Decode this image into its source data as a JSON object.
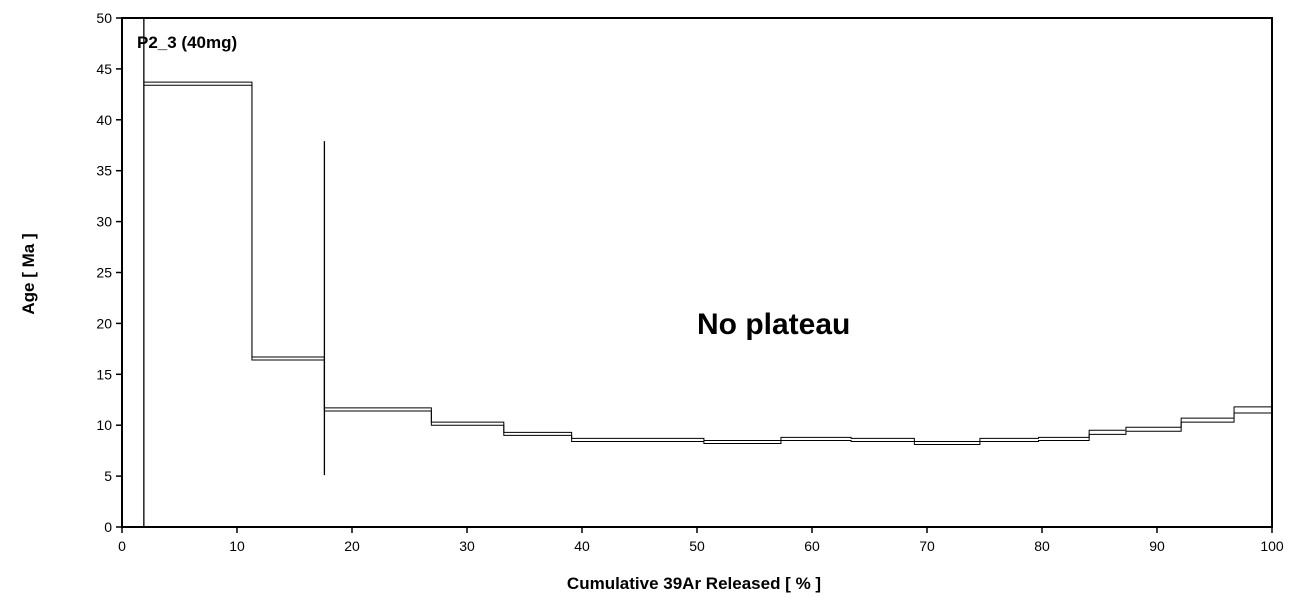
{
  "chart_data": {
    "type": "line",
    "subtype": "age-spectrum",
    "sample_label": "P2_3 (40mg)",
    "annotation": "No plateau",
    "xlabel": "Cumulative 39Ar Released [ % ]",
    "ylabel": "Age [ Ma ]",
    "xlim": [
      0,
      100
    ],
    "ylim": [
      0,
      50
    ],
    "x_ticks": [
      0,
      10,
      20,
      30,
      40,
      50,
      60,
      70,
      80,
      90,
      100
    ],
    "y_ticks": [
      0,
      5,
      10,
      15,
      20,
      25,
      30,
      35,
      40,
      45,
      50
    ],
    "grid": false,
    "steps": [
      {
        "x_start": 1.9,
        "x_end": 11.3,
        "age_low": 43.4,
        "age_high": 43.7
      },
      {
        "x_start": 11.3,
        "x_end": 17.6,
        "age_low": 16.4,
        "age_high": 16.7
      },
      {
        "x_start": 17.6,
        "x_end": 26.9,
        "age_low": 11.4,
        "age_high": 11.7
      },
      {
        "x_start": 26.9,
        "x_end": 33.2,
        "age_low": 10.0,
        "age_high": 10.3
      },
      {
        "x_start": 33.2,
        "x_end": 39.1,
        "age_low": 9.0,
        "age_high": 9.3
      },
      {
        "x_start": 39.1,
        "x_end": 45.0,
        "age_low": 8.4,
        "age_high": 8.7
      },
      {
        "x_start": 45.0,
        "x_end": 50.6,
        "age_low": 8.4,
        "age_high": 8.7
      },
      {
        "x_start": 50.6,
        "x_end": 57.3,
        "age_low": 8.2,
        "age_high": 8.5
      },
      {
        "x_start": 57.3,
        "x_end": 63.4,
        "age_low": 8.5,
        "age_high": 8.8
      },
      {
        "x_start": 63.4,
        "x_end": 68.9,
        "age_low": 8.4,
        "age_high": 8.7
      },
      {
        "x_start": 68.9,
        "x_end": 74.6,
        "age_low": 8.1,
        "age_high": 8.4
      },
      {
        "x_start": 74.6,
        "x_end": 79.7,
        "age_low": 8.4,
        "age_high": 8.7
      },
      {
        "x_start": 79.7,
        "x_end": 84.1,
        "age_low": 8.5,
        "age_high": 8.8
      },
      {
        "x_start": 84.1,
        "x_end": 87.3,
        "age_low": 9.1,
        "age_high": 9.5
      },
      {
        "x_start": 87.3,
        "x_end": 92.1,
        "age_low": 9.4,
        "age_high": 9.8
      },
      {
        "x_start": 92.1,
        "x_end": 96.7,
        "age_low": 10.3,
        "age_high": 10.7
      },
      {
        "x_start": 96.7,
        "x_end": 100.0,
        "age_low": 11.2,
        "age_high": 11.8
      }
    ],
    "vertical_markers": [
      {
        "x": 1.9,
        "y_low": 0,
        "y_high": 50
      },
      {
        "x": 17.6,
        "y_low": 5.1,
        "y_high": 37.9
      }
    ]
  }
}
